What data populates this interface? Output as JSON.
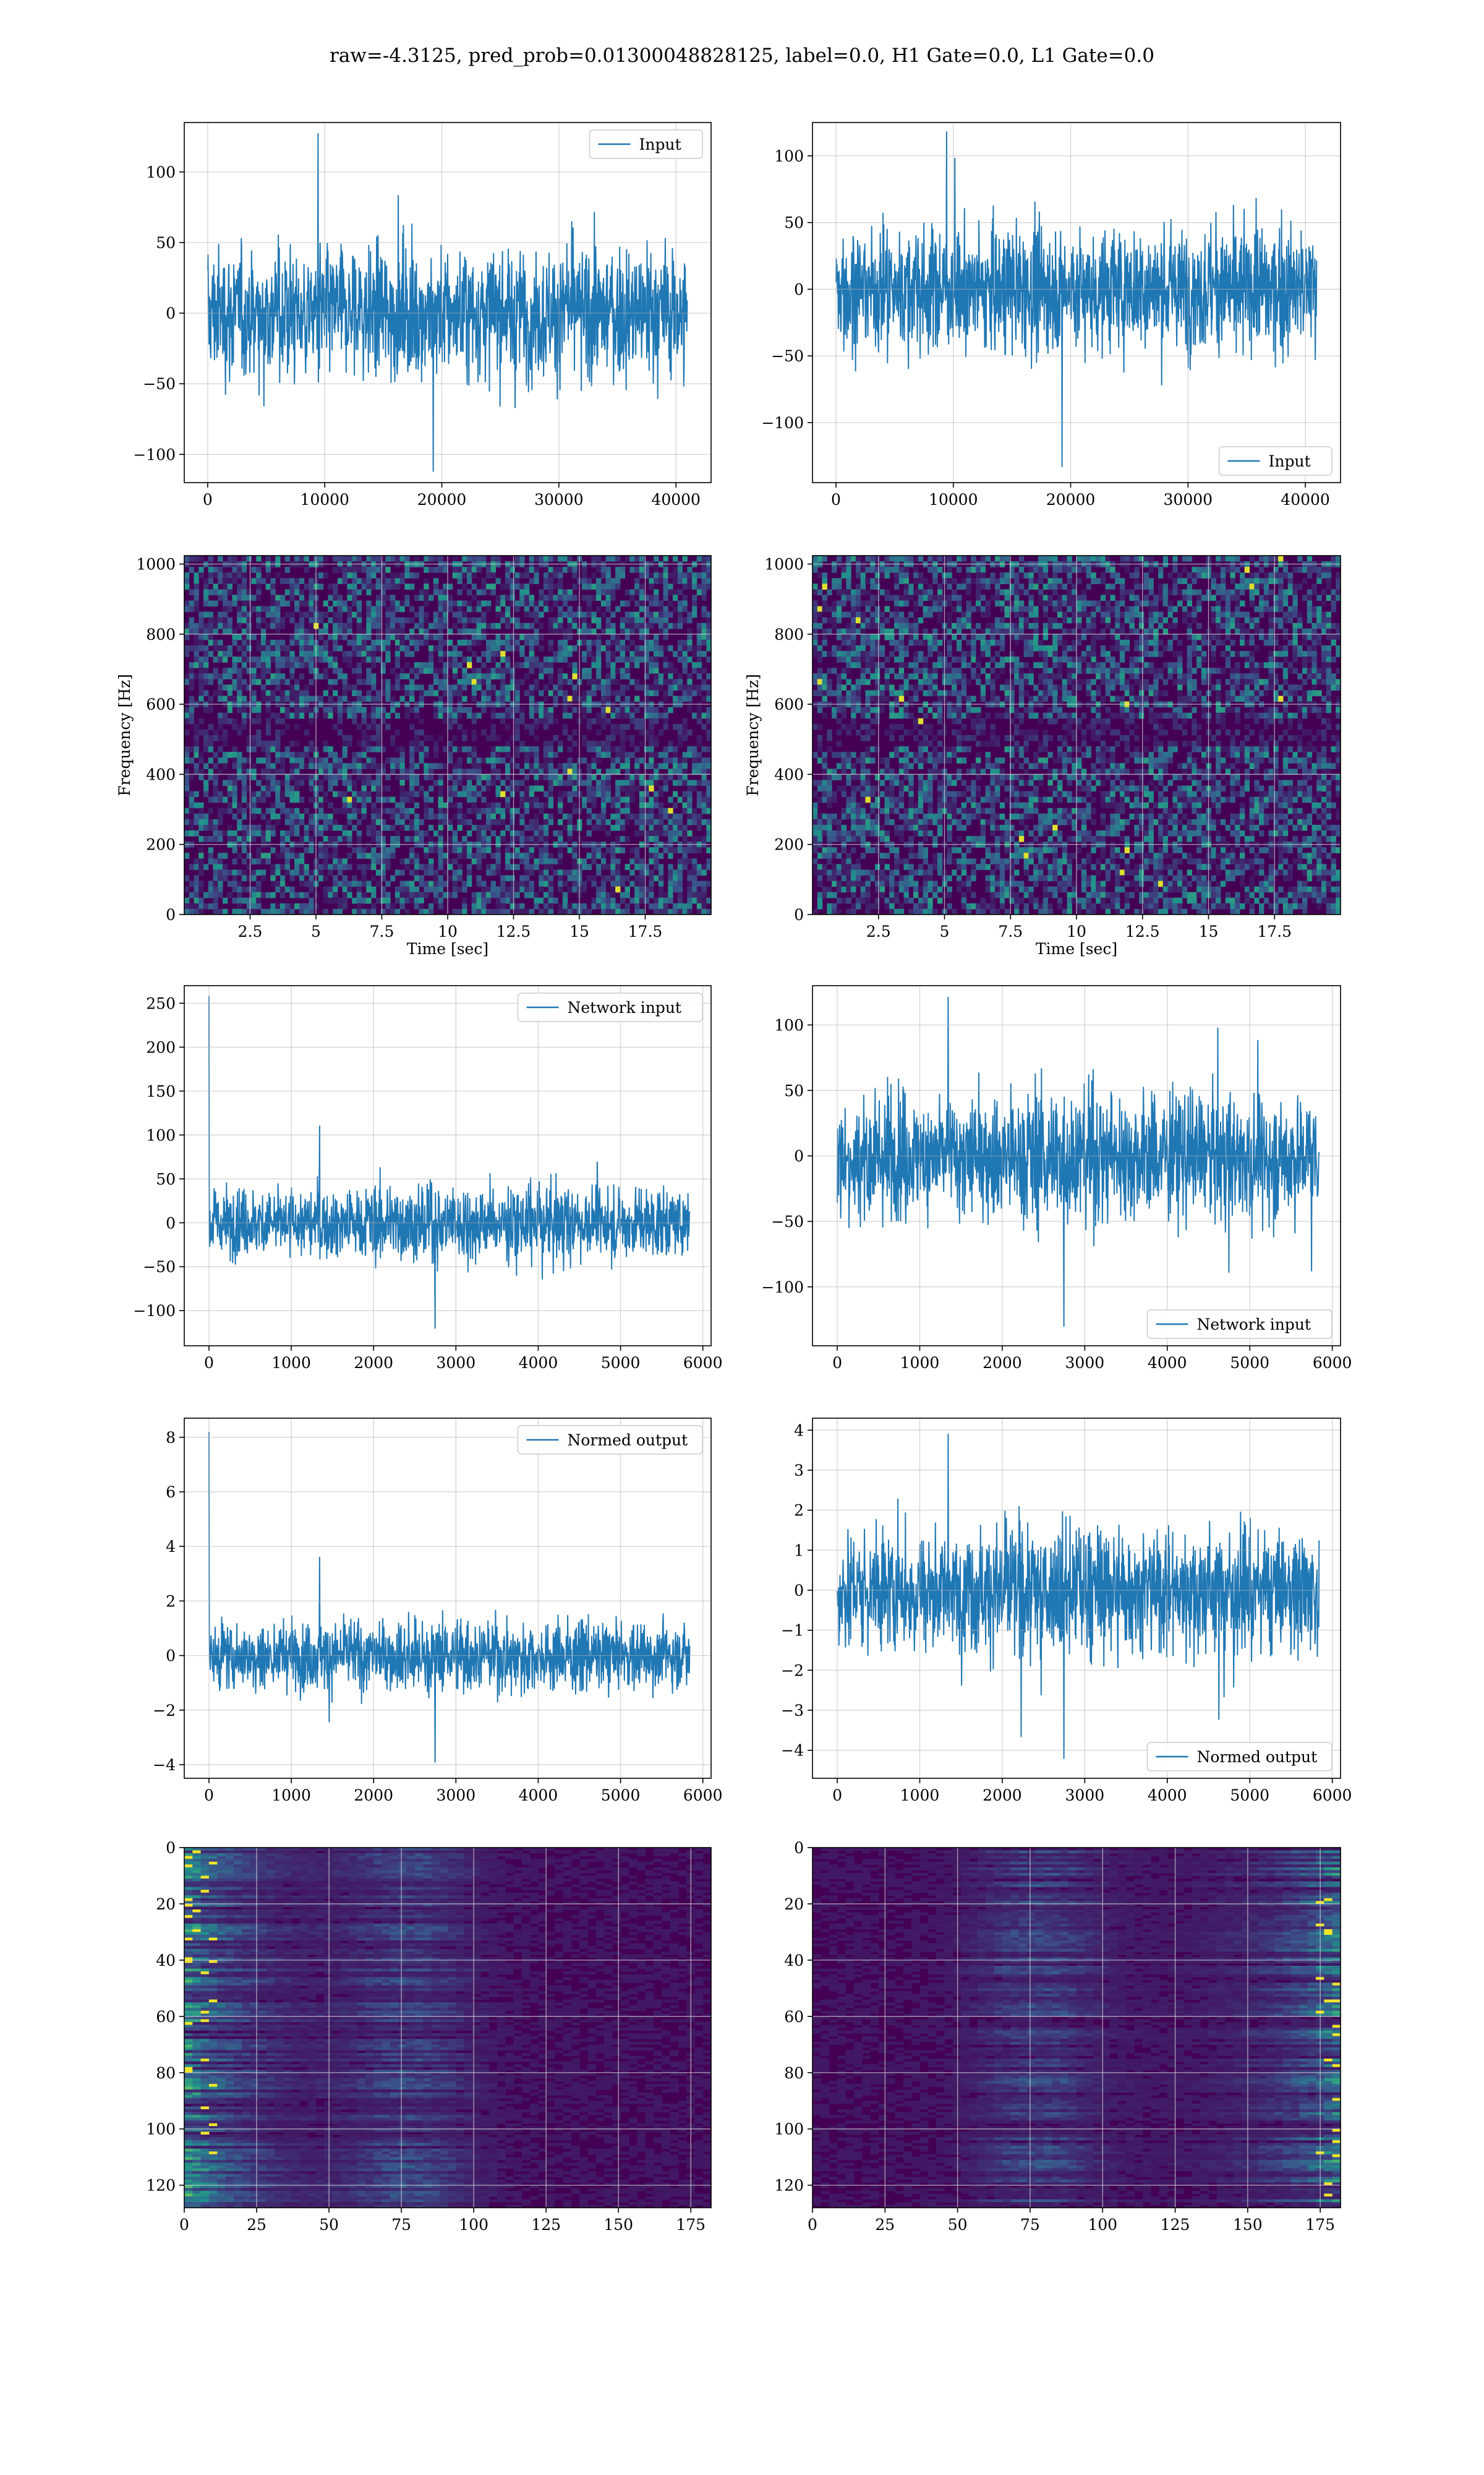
{
  "figure": {
    "suptitle": "raw=-4.3125, pred_prob=0.01300048828125, label=0.0, H1 Gate=0.0, L1 Gate=0.0"
  },
  "colors": {
    "series": "#1f77b4",
    "grid": "#b0b0b0",
    "viridis_low": "#440154",
    "viridis_mid": "#21918c",
    "viridis_high": "#fde725"
  },
  "chart_data": [
    {
      "type": "line",
      "row": 0,
      "col": 0,
      "series": [
        {
          "name": "Input",
          "n": 40960,
          "amplitude": 32,
          "peak_max": 127,
          "peak_min": -112
        }
      ],
      "xlim": [
        -2000,
        43000
      ],
      "ylim": [
        -120,
        135
      ],
      "xticks": [
        0,
        10000,
        20000,
        30000,
        40000
      ],
      "yticks": [
        -100,
        -50,
        0,
        50,
        100
      ],
      "xlabel": "",
      "ylabel": "",
      "legend": "upper right",
      "grid": true
    },
    {
      "type": "line",
      "row": 0,
      "col": 1,
      "series": [
        {
          "name": "Input",
          "n": 40960,
          "amplitude": 32,
          "peak_max": 118,
          "peak_min": -133
        }
      ],
      "xlim": [
        -2000,
        43000
      ],
      "ylim": [
        -145,
        125
      ],
      "xticks": [
        0,
        10000,
        20000,
        30000,
        40000
      ],
      "yticks": [
        -100,
        -50,
        0,
        50,
        100
      ],
      "xlabel": "",
      "ylabel": "",
      "legend": "lower right",
      "grid": true
    },
    {
      "type": "heatmap",
      "row": 1,
      "col": 0,
      "xlim": [
        0,
        20
      ],
      "ylim": [
        0,
        1024
      ],
      "xticks": [
        2.5,
        5.0,
        7.5,
        10.0,
        12.5,
        15.0,
        17.5
      ],
      "yticks": [
        0,
        200,
        400,
        600,
        800,
        1000
      ],
      "xlabel": "Time [sec]",
      "ylabel": "Frequency [Hz]",
      "colormap": "viridis",
      "grid": true
    },
    {
      "type": "heatmap",
      "row": 1,
      "col": 1,
      "xlim": [
        0,
        20
      ],
      "ylim": [
        0,
        1024
      ],
      "xticks": [
        2.5,
        5.0,
        7.5,
        10.0,
        12.5,
        15.0,
        17.5
      ],
      "yticks": [
        0,
        200,
        400,
        600,
        800,
        1000
      ],
      "xlabel": "Time [sec]",
      "ylabel": "Frequency [Hz]",
      "colormap": "viridis",
      "grid": true
    },
    {
      "type": "line",
      "row": 2,
      "col": 0,
      "series": [
        {
          "name": "Network input",
          "n": 5840,
          "amplitude": 27,
          "spike": 258,
          "peak_max": 110,
          "peak_min": -120
        }
      ],
      "xlim": [
        -300,
        6100
      ],
      "ylim": [
        -140,
        270
      ],
      "xticks": [
        0,
        1000,
        2000,
        3000,
        4000,
        5000,
        6000
      ],
      "yticks": [
        -100,
        -50,
        0,
        50,
        100,
        150,
        200,
        250
      ],
      "xlabel": "",
      "ylabel": "",
      "legend": "upper right",
      "grid": true
    },
    {
      "type": "line",
      "row": 2,
      "col": 1,
      "series": [
        {
          "name": "Network input",
          "n": 5840,
          "amplitude": 33,
          "peak_max": 121,
          "peak_min": -130
        }
      ],
      "xlim": [
        -300,
        6100
      ],
      "ylim": [
        -145,
        130
      ],
      "xticks": [
        0,
        1000,
        2000,
        3000,
        4000,
        5000,
        6000
      ],
      "yticks": [
        -100,
        -50,
        0,
        50,
        100
      ],
      "xlabel": "",
      "ylabel": "",
      "legend": "lower right",
      "grid": true
    },
    {
      "type": "line",
      "row": 3,
      "col": 0,
      "series": [
        {
          "name": "Normed output",
          "n": 5840,
          "amplitude": 0.85,
          "spike": 8.2,
          "peak_max": 3.6,
          "peak_min": -3.9
        }
      ],
      "xlim": [
        -300,
        6100
      ],
      "ylim": [
        -4.5,
        8.7
      ],
      "xticks": [
        0,
        1000,
        2000,
        3000,
        4000,
        5000,
        6000
      ],
      "yticks": [
        -4,
        -2,
        0,
        2,
        4,
        6,
        8
      ],
      "xlabel": "",
      "ylabel": "",
      "legend": "upper right",
      "grid": true
    },
    {
      "type": "line",
      "row": 3,
      "col": 1,
      "series": [
        {
          "name": "Normed output",
          "n": 5840,
          "amplitude": 1.05,
          "peak_max": 3.9,
          "peak_min": -4.2
        }
      ],
      "xlim": [
        -300,
        6100
      ],
      "ylim": [
        -4.7,
        4.3
      ],
      "xticks": [
        0,
        1000,
        2000,
        3000,
        4000,
        5000,
        6000
      ],
      "yticks": [
        -4,
        -3,
        -2,
        -1,
        0,
        1,
        2,
        3,
        4
      ],
      "xlabel": "",
      "ylabel": "",
      "legend": "lower right",
      "grid": true
    },
    {
      "type": "heatmap",
      "row": 4,
      "col": 0,
      "xlim": [
        0,
        182
      ],
      "ylim": [
        128,
        0
      ],
      "xticks": [
        0,
        25,
        50,
        75,
        100,
        125,
        150,
        175
      ],
      "yticks": [
        0,
        20,
        40,
        60,
        80,
        100,
        120
      ],
      "xlabel": "",
      "ylabel": "",
      "colormap": "viridis",
      "grid": true
    },
    {
      "type": "heatmap",
      "row": 4,
      "col": 1,
      "xlim": [
        0,
        182
      ],
      "ylim": [
        128,
        0
      ],
      "xticks": [
        0,
        25,
        50,
        75,
        100,
        125,
        150,
        175
      ],
      "yticks": [
        0,
        20,
        40,
        60,
        80,
        100,
        120
      ],
      "xlabel": "",
      "ylabel": "",
      "colormap": "viridis",
      "grid": true
    }
  ]
}
